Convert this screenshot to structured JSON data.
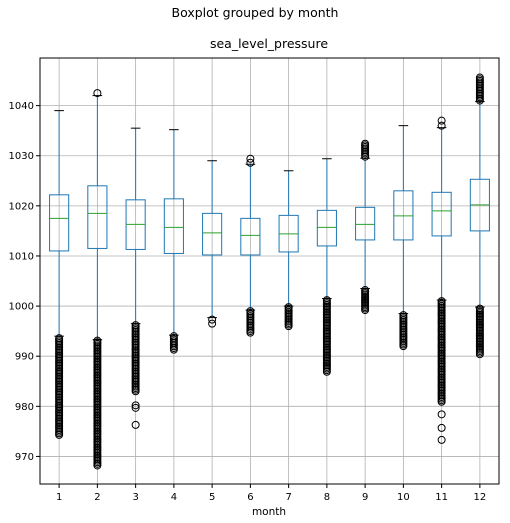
{
  "suptitle": "Boxplot grouped by month",
  "chart_data": {
    "type": "boxplot",
    "title": "sea_level_pressure",
    "xlabel": "month",
    "ylabel": "",
    "ylim": [
      964.5,
      1049.5
    ],
    "yticks": [
      970,
      980,
      990,
      1000,
      1010,
      1020,
      1030,
      1040
    ],
    "grid": true,
    "categories": [
      "1",
      "2",
      "3",
      "4",
      "5",
      "6",
      "7",
      "8",
      "9",
      "10",
      "11",
      "12"
    ],
    "colors": {
      "box": "#1f77b4",
      "median": "#2ca02c",
      "grid": "#b0b0b0",
      "flier": "#000000"
    },
    "boxes": [
      {
        "label": "1",
        "whisker_low": 994.0,
        "q1": 1011.0,
        "median": 1017.5,
        "q3": 1022.2,
        "whisker_high": 1039.0,
        "fliers_low": [
          974.3,
          993.6
        ],
        "fliers_high": []
      },
      {
        "label": "2",
        "whisker_low": 993.3,
        "q1": 1011.5,
        "median": 1018.5,
        "q3": 1024.0,
        "whisker_high": 1042.0,
        "fliers_low": [
          968.2,
          993.1
        ],
        "fliers_high": [
          1042.5
        ]
      },
      {
        "label": "3",
        "whisker_low": 996.5,
        "q1": 1011.3,
        "median": 1016.3,
        "q3": 1021.2,
        "whisker_high": 1035.5,
        "fliers_low": [
          976.3,
          979.7,
          980.2,
          983.0,
          996.2
        ],
        "fliers_high": []
      },
      {
        "label": "4",
        "whisker_low": 994.2,
        "q1": 1010.5,
        "median": 1015.7,
        "q3": 1021.4,
        "whisker_high": 1035.2,
        "fliers_low": [
          991.3,
          994.0
        ],
        "fliers_high": []
      },
      {
        "label": "5",
        "whisker_low": 997.7,
        "q1": 1010.2,
        "median": 1014.6,
        "q3": 1018.5,
        "whisker_high": 1029.0,
        "fliers_low": [
          996.5,
          997.3
        ],
        "fliers_high": []
      },
      {
        "label": "6",
        "whisker_low": 999.2,
        "q1": 1010.2,
        "median": 1014.1,
        "q3": 1017.5,
        "whisker_high": 1028.3,
        "fliers_low": [
          994.7,
          999.0
        ],
        "fliers_high": [
          1028.6,
          1029.4
        ]
      },
      {
        "label": "7",
        "whisker_low": 1000.0,
        "q1": 1010.8,
        "median": 1014.4,
        "q3": 1018.1,
        "whisker_high": 1027.0,
        "fliers_low": [
          996.0,
          999.8
        ],
        "fliers_high": []
      },
      {
        "label": "8",
        "whisker_low": 1001.5,
        "q1": 1012.0,
        "median": 1015.7,
        "q3": 1019.1,
        "whisker_high": 1029.4,
        "fliers_low": [
          986.9,
          1001.2
        ],
        "fliers_high": []
      },
      {
        "label": "9",
        "whisker_low": 1003.5,
        "q1": 1013.2,
        "median": 1016.3,
        "q3": 1019.7,
        "whisker_high": 1029.5,
        "fliers_low": [
          999.2,
          1003.2
        ],
        "fliers_high": [
          1029.8,
          1032.4
        ]
      },
      {
        "label": "10",
        "whisker_low": 998.5,
        "q1": 1013.2,
        "median": 1018.0,
        "q3": 1023.0,
        "whisker_high": 1036.0,
        "fliers_low": [
          992.0,
          998.2
        ],
        "fliers_high": []
      },
      {
        "label": "11",
        "whisker_low": 1001.2,
        "q1": 1014.0,
        "median": 1019.0,
        "q3": 1022.7,
        "whisker_high": 1035.6,
        "fliers_low": [
          973.3,
          975.7,
          978.4,
          980.9,
          1001.0
        ],
        "fliers_high": [
          1036.0,
          1037.0
        ]
      },
      {
        "label": "12",
        "whisker_low": 999.8,
        "q1": 1015.0,
        "median": 1020.2,
        "q3": 1025.3,
        "whisker_high": 1040.8,
        "fliers_low": [
          990.4,
          999.5
        ],
        "fliers_high": [
          1041.0,
          1045.6
        ]
      }
    ]
  }
}
